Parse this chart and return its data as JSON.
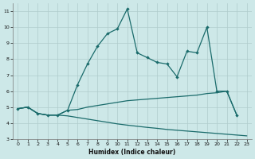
{
  "xlabel": "Humidex (Indice chaleur)",
  "background_color": "#cde8e8",
  "grid_color": "#b0cccc",
  "line_color": "#1a6b6b",
  "xlim": [
    -0.5,
    23.5
  ],
  "ylim": [
    3,
    11.5
  ],
  "yticks": [
    3,
    4,
    5,
    6,
    7,
    8,
    9,
    10,
    11
  ],
  "xticks": [
    0,
    1,
    2,
    3,
    4,
    5,
    6,
    7,
    8,
    9,
    10,
    11,
    12,
    13,
    14,
    15,
    16,
    17,
    18,
    19,
    20,
    21,
    22,
    23
  ],
  "series_zigzag": {
    "x": [
      0,
      1,
      2,
      3,
      4,
      5,
      6,
      7,
      8,
      9,
      10,
      11,
      12,
      13,
      14,
      15,
      16,
      17,
      18,
      19,
      20,
      21,
      22
    ],
    "y": [
      4.9,
      5.0,
      4.6,
      4.5,
      4.5,
      4.8,
      6.4,
      7.7,
      8.8,
      9.6,
      9.9,
      11.15,
      8.4,
      8.1,
      7.8,
      7.7,
      6.9,
      8.5,
      8.4,
      10.0,
      6.0,
      6.0,
      4.5
    ]
  },
  "series_upper": {
    "x": [
      0,
      1,
      2,
      3,
      4,
      5,
      6,
      7,
      8,
      9,
      10,
      11,
      12,
      13,
      14,
      15,
      16,
      17,
      18,
      19,
      20,
      21,
      22
    ],
    "y": [
      4.9,
      5.0,
      4.6,
      4.5,
      4.5,
      4.8,
      4.85,
      5.0,
      5.1,
      5.2,
      5.3,
      5.4,
      5.45,
      5.5,
      5.55,
      5.6,
      5.65,
      5.7,
      5.75,
      5.85,
      5.9,
      6.0,
      4.5
    ]
  },
  "series_lower": {
    "x": [
      0,
      1,
      2,
      3,
      4,
      5,
      6,
      7,
      8,
      9,
      10,
      11,
      12,
      13,
      14,
      15,
      16,
      17,
      18,
      19,
      20,
      21,
      22,
      23
    ],
    "y": [
      4.9,
      5.0,
      4.6,
      4.5,
      4.5,
      4.45,
      4.35,
      4.25,
      4.15,
      4.05,
      3.95,
      3.87,
      3.8,
      3.73,
      3.67,
      3.6,
      3.55,
      3.5,
      3.45,
      3.4,
      3.35,
      3.3,
      3.25,
      3.2
    ]
  }
}
